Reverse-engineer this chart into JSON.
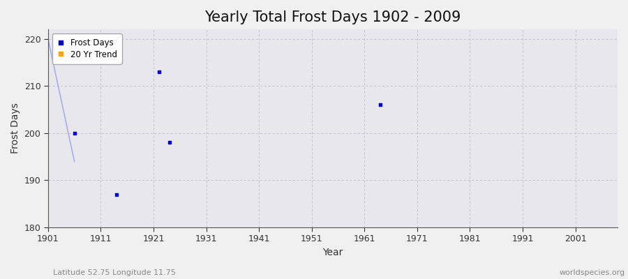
{
  "title": "Yearly Total Frost Days 1902 - 2009",
  "xlabel": "Year",
  "ylabel": "Frost Days",
  "subtitle_left": "Latitude 52.75 Longitude 11.75",
  "subtitle_right": "worldspecies.org",
  "xlim": [
    1901,
    2009
  ],
  "ylim": [
    180,
    222
  ],
  "yticks": [
    180,
    190,
    200,
    210,
    220
  ],
  "xticks": [
    1901,
    1911,
    1921,
    1931,
    1941,
    1951,
    1961,
    1971,
    1981,
    1991,
    2001
  ],
  "frost_days_x": [
    1906,
    1914,
    1922,
    1924,
    1964
  ],
  "frost_days_y": [
    200,
    187,
    213,
    198,
    206
  ],
  "trend_x": [
    1901,
    1906
  ],
  "trend_y": [
    220,
    194
  ],
  "point_color": "#0000cc",
  "trend_color": "#aaaaee",
  "legend_dot_color": "#0000cc",
  "legend_trend_color": "#ffa500",
  "figure_bg_color": "#f0f0f0",
  "plot_bg_color": "#e8e8ec",
  "grid_color": "#bbbbcc",
  "title_fontsize": 15,
  "axis_label_fontsize": 10,
  "tick_fontsize": 9,
  "subtitle_fontsize": 8
}
